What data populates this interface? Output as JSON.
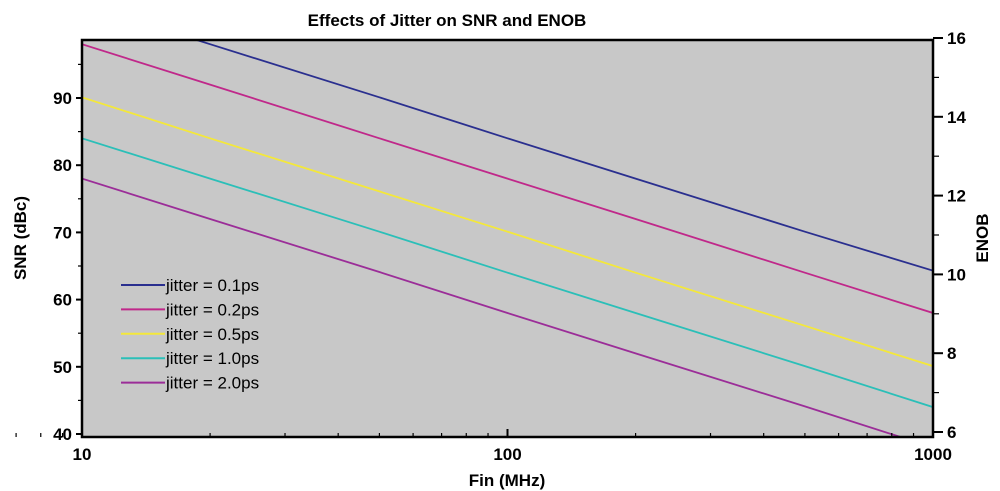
{
  "chart_data": {
    "type": "line",
    "title": "Effects of Jitter on SNR and ENOB",
    "xlabel": "Fin (MHz)",
    "ylabel": "SNR (dBc)",
    "y2label": "ENOB",
    "xscale": "log",
    "xlim": [
      10,
      1000
    ],
    "ylim": [
      40,
      99
    ],
    "y2lim": [
      6,
      16
    ],
    "x_ticks": [
      10,
      100,
      1000
    ],
    "x_tick_labels": [
      "10",
      "100",
      "1000"
    ],
    "y_ticks": [
      40,
      50,
      60,
      70,
      80,
      90
    ],
    "y_tick_labels": [
      "40",
      "50",
      "60",
      "70",
      "80",
      "90"
    ],
    "y2_ticks": [
      6,
      8,
      10,
      12,
      14,
      16
    ],
    "y2_tick_labels": [
      "6",
      "8",
      "10",
      "12",
      "14",
      "16"
    ],
    "background_color": "#c8c8c8",
    "grid": false,
    "legend_position": "lower-left",
    "x": [
      10,
      20,
      50,
      100,
      200,
      500,
      1000
    ],
    "series": [
      {
        "name": "jitter = 0.1ps",
        "color": "#2a2f8f",
        "values": [
          104.0,
          98.0,
          90.1,
          84.0,
          78.0,
          70.1,
          64.3
        ]
      },
      {
        "name": "jitter = 0.2ps",
        "color": "#c0288a",
        "values": [
          98.0,
          92.0,
          84.0,
          78.0,
          72.0,
          64.0,
          58.0
        ]
      },
      {
        "name": "jitter = 0.5ps",
        "color": "#f4e83a",
        "values": [
          90.1,
          84.0,
          76.1,
          70.1,
          64.0,
          56.1,
          50.1
        ]
      },
      {
        "name": "jitter = 1.0ps",
        "color": "#2bbfb8",
        "values": [
          84.0,
          78.0,
          70.1,
          64.0,
          58.0,
          50.1,
          44.0
        ]
      },
      {
        "name": "jitter = 2.0ps",
        "color": "#9b2d98",
        "values": [
          78.0,
          72.0,
          64.1,
          58.0,
          52.0,
          44.1,
          38.0
        ]
      }
    ]
  }
}
